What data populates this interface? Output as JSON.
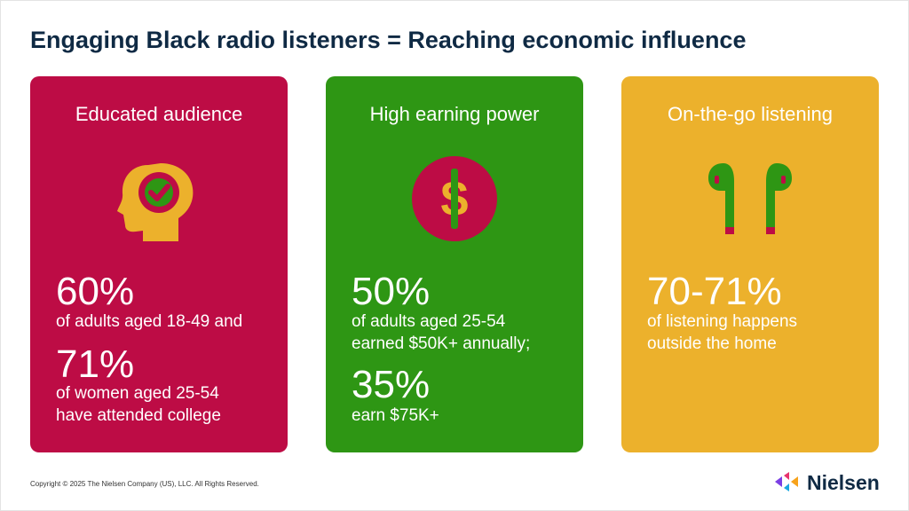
{
  "title": "Engaging Black radio listeners = Reaching economic influence",
  "colors": {
    "card1": "#bd0c45",
    "card2": "#2e9614",
    "card3": "#ecb12c",
    "navy": "#0f2a44"
  },
  "cards": [
    {
      "heading": "Educated audience",
      "icon": "head-check-icon",
      "stat1": "60%",
      "desc1": [
        "of adults aged 18-49 and"
      ],
      "stat2": "71%",
      "desc2": [
        "of women aged 25-54",
        "have attended college"
      ]
    },
    {
      "heading": "High earning power",
      "icon": "dollar-icon",
      "stat1": "50%",
      "desc1": [
        "of adults aged 25-54",
        "earned $50K+ annually;"
      ],
      "stat2": "35%",
      "desc2": [
        "earn $75K+"
      ]
    },
    {
      "heading": "On-the-go listening",
      "icon": "earbuds-icon",
      "stat1": "70-71%",
      "desc1": [
        "of listening happens",
        "outside the home"
      ]
    }
  ],
  "footer": "Copyright © 2025 The Nielsen Company (US), LLC. All Rights Reserved.",
  "logo": "Nielsen"
}
